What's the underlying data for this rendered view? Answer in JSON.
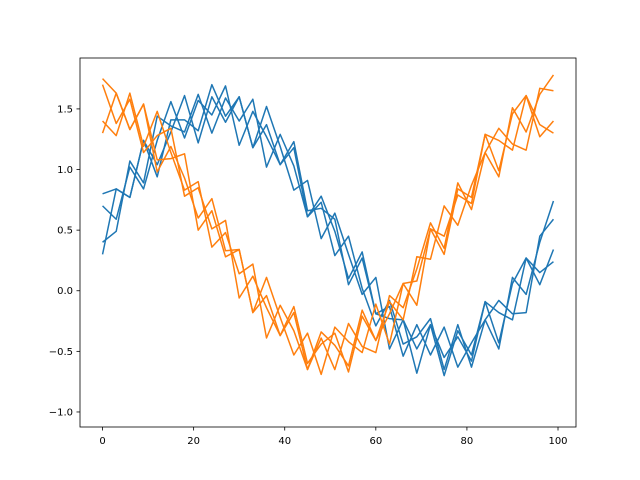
{
  "chart_data": {
    "type": "line",
    "x": [
      0,
      3,
      6,
      9,
      12,
      15,
      18,
      21,
      24,
      27,
      30,
      33,
      36,
      39,
      42,
      45,
      48,
      51,
      54,
      57,
      60,
      63,
      66,
      69,
      72,
      75,
      78,
      81,
      84,
      87,
      90,
      93,
      96,
      99
    ],
    "series": [
      {
        "color": "#1f77b4",
        "values": [
          0.7,
          0.59,
          1.02,
          0.84,
          1.24,
          1.56,
          1.26,
          1.57,
          1.45,
          1.69,
          1.2,
          1.48,
          1.27,
          1.04,
          1.18,
          0.61,
          0.78,
          0.49,
          0.1,
          0.32,
          -0.19,
          -0.13,
          -0.54,
          -0.28,
          -0.53,
          -0.3,
          -0.63,
          -0.43,
          -0.24,
          -0.48,
          0.11,
          -0.03,
          0.4,
          0.74
        ]
      },
      {
        "color": "#1f77b4",
        "values": [
          0.3,
          0.84,
          0.77,
          1.24,
          1.04,
          1.31,
          1.61,
          1.22,
          1.6,
          1.39,
          1.6,
          1.18,
          1.52,
          1.19,
          0.83,
          0.91,
          0.43,
          0.64,
          0.3,
          -0.03,
          0.11,
          -0.48,
          -0.24,
          -0.48,
          -0.28,
          -0.7,
          -0.33,
          -0.53,
          -0.09,
          -0.18,
          -0.24,
          0.27,
          0.05,
          0.34
        ]
      },
      {
        "color": "#1f77b4",
        "values": [
          0.8,
          0.84,
          0.77,
          1.24,
          0.94,
          1.41,
          1.41,
          1.32,
          1.7,
          1.44,
          1.6,
          1.18,
          1.37,
          1.04,
          1.23,
          0.66,
          0.68,
          0.59,
          0.05,
          0.27,
          -0.19,
          -0.23,
          -0.24,
          -0.68,
          -0.28,
          -0.55,
          -0.38,
          -0.58,
          -0.09,
          -0.43,
          0.06,
          0.27,
          0.15,
          0.24
        ]
      },
      {
        "color": "#1f77b4",
        "values": [
          0.4,
          0.49,
          1.07,
          0.89,
          1.44,
          1.36,
          1.31,
          1.62,
          1.3,
          1.59,
          1.4,
          1.58,
          1.02,
          1.29,
          1.03,
          0.61,
          0.73,
          0.29,
          0.45,
          0.02,
          -0.29,
          -0.08,
          -0.44,
          -0.38,
          -0.23,
          -0.65,
          -0.28,
          -0.63,
          -0.24,
          -0.08,
          -0.19,
          -0.18,
          0.45,
          0.59
        ]
      },
      {
        "color": "#ff7f0e",
        "values": [
          1.3,
          1.63,
          1.33,
          1.54,
          1.08,
          1.09,
          1.13,
          0.5,
          0.66,
          0.28,
          0.34,
          -0.18,
          0.11,
          -0.22,
          -0.53,
          -0.35,
          -0.69,
          -0.3,
          -0.42,
          -0.51,
          -0.11,
          -0.44,
          0.06,
          0.08,
          0.51,
          0.3,
          0.84,
          0.77,
          1.29,
          1.24,
          1.16,
          1.61,
          1.27,
          1.4
        ]
      },
      {
        "color": "#ff7f0e",
        "values": [
          1.7,
          1.38,
          1.58,
          1.14,
          1.28,
          1.34,
          0.78,
          0.85,
          0.51,
          0.58,
          -0.06,
          0.12,
          -0.14,
          -0.37,
          -0.18,
          -0.65,
          -0.34,
          -0.45,
          -0.62,
          -0.16,
          -0.41,
          -0.09,
          -0.24,
          0.28,
          0.26,
          0.7,
          0.54,
          0.87,
          1.14,
          0.94,
          1.51,
          1.31,
          1.62,
          1.78
        ]
      },
      {
        "color": "#ff7f0e",
        "values": [
          1.4,
          1.28,
          1.63,
          1.19,
          1.48,
          1.14,
          0.83,
          0.9,
          0.36,
          0.48,
          0.14,
          0.22,
          -0.39,
          -0.12,
          -0.33,
          -0.65,
          -0.39,
          -0.65,
          -0.27,
          -0.46,
          -0.51,
          -0.04,
          -0.14,
          0.18,
          0.56,
          0.35,
          0.89,
          0.67,
          1.14,
          1.34,
          1.21,
          1.16,
          1.67,
          1.65
        ]
      },
      {
        "color": "#ff7f0e",
        "values": [
          1.75,
          1.63,
          1.33,
          1.54,
          0.98,
          1.19,
          0.93,
          0.6,
          0.76,
          0.33,
          0.34,
          -0.18,
          -0.04,
          -0.37,
          -0.13,
          -0.6,
          -0.44,
          -0.35,
          -0.67,
          -0.21,
          -0.41,
          -0.19,
          0.06,
          -0.12,
          0.51,
          0.45,
          0.79,
          0.72,
          1.29,
          0.99,
          1.46,
          1.61,
          1.37,
          1.3
        ]
      }
    ],
    "xlim": [
      -4.95,
      103.95
    ],
    "xticks": [
      0,
      20,
      40,
      60,
      80,
      100
    ],
    "ylim": [
      -1.124,
      1.92
    ],
    "yticks": [
      {
        "value": -1.0,
        "label": "−1.0"
      },
      {
        "value": -0.5,
        "label": "−0.5"
      },
      {
        "value": 0,
        "label": "0.0"
      },
      0.5,
      {
        "value": 1.0,
        "label": "1.0"
      },
      1.5
    ],
    "grid": false
  }
}
